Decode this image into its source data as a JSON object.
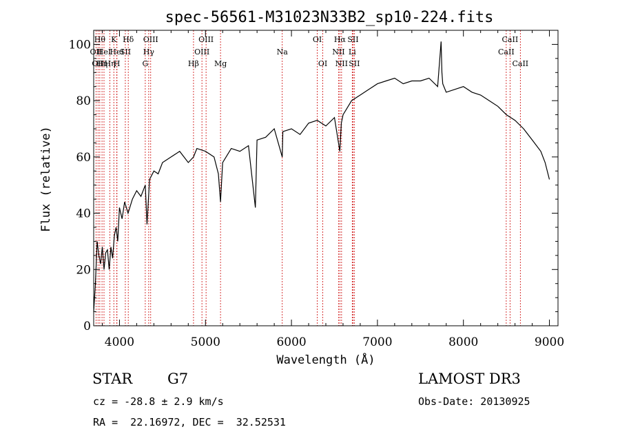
{
  "chart_data": {
    "type": "line",
    "title": "spec-56561-M31023N33B2_sp10-224.fits",
    "xlabel": "Wavelength (Å)",
    "ylabel": "Flux (relative)",
    "xlim": [
      3700,
      9100
    ],
    "ylim": [
      0,
      105
    ],
    "xticks": [
      4000,
      5000,
      6000,
      7000,
      8000,
      9000
    ],
    "yticks": [
      0,
      20,
      40,
      60,
      80,
      100
    ],
    "grid": false,
    "series": [
      {
        "x": [
          3700,
          3720,
          3740,
          3760,
          3780,
          3800,
          3820,
          3840,
          3860,
          3880,
          3900,
          3920,
          3940,
          3960,
          3980,
          4000,
          4030,
          4060,
          4100,
          4150,
          4200,
          4250,
          4300,
          4320,
          4350,
          4400,
          4450,
          4500,
          4600,
          4700,
          4800,
          4861,
          4900,
          5000,
          5100,
          5150,
          5175,
          5200,
          5300,
          5400,
          5500,
          5580,
          5600,
          5700,
          5800,
          5893,
          5900,
          6000,
          6100,
          6200,
          6300,
          6400,
          6500,
          6563,
          6580,
          6600,
          6700,
          6800,
          6900,
          7000,
          7100,
          7200,
          7300,
          7400,
          7500,
          7600,
          7700,
          7740,
          7750,
          7760,
          7800,
          7900,
          8000,
          8100,
          8200,
          8300,
          8400,
          8500,
          8600,
          8700,
          8800,
          8900,
          8950,
          9000
        ],
        "y": [
          5,
          15,
          30,
          25,
          22,
          28,
          20,
          26,
          27,
          20,
          28,
          24,
          32,
          35,
          30,
          42,
          38,
          44,
          40,
          45,
          48,
          46,
          50,
          36,
          52,
          55,
          54,
          58,
          60,
          62,
          58,
          60,
          63,
          62,
          60,
          54,
          44,
          58,
          63,
          62,
          64,
          42,
          66,
          67,
          70,
          60,
          69,
          70,
          68,
          72,
          73,
          71,
          74,
          62,
          72,
          75,
          80,
          82,
          84,
          86,
          87,
          88,
          86,
          87,
          87,
          88,
          85,
          101,
          90,
          86,
          83,
          84,
          85,
          83,
          82,
          80,
          78,
          75,
          73,
          70,
          66,
          62,
          58,
          52
        ]
      }
    ],
    "line_markers": [
      {
        "wavelength": 3727,
        "label": "OII",
        "row": 1
      },
      {
        "wavelength": 3750,
        "label": "OII",
        "row": 2
      },
      {
        "wavelength": 3771,
        "label": "Hθ",
        "row": 0
      },
      {
        "wavelength": 3797,
        "label": "Hη",
        "row": 2
      },
      {
        "wavelength": 3820,
        "label": "HeI",
        "row": 1
      },
      {
        "wavelength": 3889,
        "label": "Hη",
        "row": 2
      },
      {
        "wavelength": 3934,
        "label": "K",
        "row": 0
      },
      {
        "wavelength": 3970,
        "label": "H",
        "row": 2
      },
      {
        "wavelength": 3970,
        "label": "HeI",
        "row": 1
      },
      {
        "wavelength": 4068,
        "label": "SII",
        "row": 1
      },
      {
        "wavelength": 4102,
        "label": "Hδ",
        "row": 0
      },
      {
        "wavelength": 4300,
        "label": "G",
        "row": 2
      },
      {
        "wavelength": 4340,
        "label": "Hγ",
        "row": 1
      },
      {
        "wavelength": 4363,
        "label": "OIII",
        "row": 0
      },
      {
        "wavelength": 4861,
        "label": "Hβ",
        "row": 2
      },
      {
        "wavelength": 4959,
        "label": "OIII",
        "row": 1
      },
      {
        "wavelength": 5007,
        "label": "OIII",
        "row": 0
      },
      {
        "wavelength": 5175,
        "label": "Mg",
        "row": 2
      },
      {
        "wavelength": 5893,
        "label": "Na",
        "row": 1
      },
      {
        "wavelength": 6300,
        "label": "OI",
        "row": 0
      },
      {
        "wavelength": 6364,
        "label": "OI",
        "row": 2
      },
      {
        "wavelength": 6548,
        "label": "NII",
        "row": 1
      },
      {
        "wavelength": 6563,
        "label": "Hα",
        "row": 0
      },
      {
        "wavelength": 6583,
        "label": "NII",
        "row": 2
      },
      {
        "wavelength": 6707,
        "label": "Li",
        "row": 1
      },
      {
        "wavelength": 6716,
        "label": "SII",
        "row": 0
      },
      {
        "wavelength": 6731,
        "label": "SII",
        "row": 2
      },
      {
        "wavelength": 8498,
        "label": "CaII",
        "row": 1
      },
      {
        "wavelength": 8542,
        "label": "CaII",
        "row": 0
      },
      {
        "wavelength": 8662,
        "label": "CaII",
        "row": 2
      }
    ],
    "line_color": "#000000",
    "marker_color": "#cc0000"
  },
  "info": {
    "class": "STAR",
    "subclass": "G7",
    "survey": "LAMOST DR3",
    "redshift": "cz = -28.8 ± 2.9 km/s",
    "obs_date": "Obs-Date: 20130925",
    "coords": "RA =  22.16972, DEC =  32.52531"
  }
}
